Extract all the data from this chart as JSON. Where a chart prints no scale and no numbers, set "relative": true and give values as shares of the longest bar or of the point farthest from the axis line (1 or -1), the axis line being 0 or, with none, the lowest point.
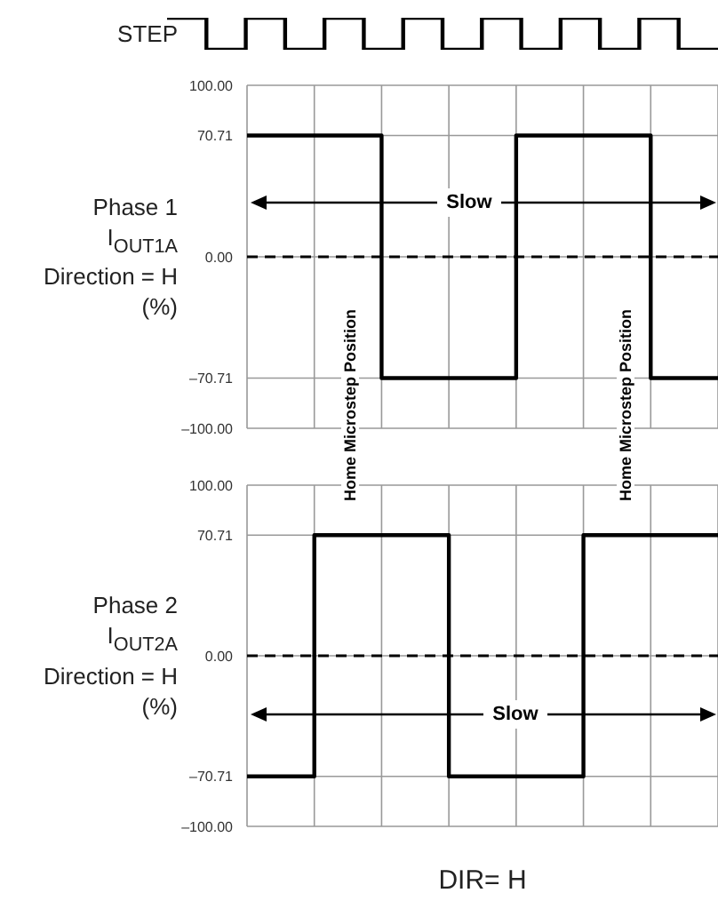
{
  "chart_data": [
    {
      "type": "step",
      "ylabel": "STEP",
      "relative": true,
      "categories": [
        null,
        null,
        null,
        null,
        null,
        null,
        null,
        null,
        null,
        null,
        null,
        null,
        null,
        null,
        null
      ],
      "series": [
        {
          "color": "#000000",
          "values": [
            1,
            0,
            1,
            0,
            1,
            0,
            1,
            0,
            1,
            0,
            1,
            0,
            1,
            0,
            0
          ]
        }
      ],
      "grid": false,
      "tick_labels": false,
      "legend": false
    },
    {
      "type": "step",
      "ylabel": "Phase 1\nI$_{OUT1A}$\nDirection = H\n(%)",
      "categories": [
        null,
        null,
        null,
        null,
        null,
        null,
        null,
        null
      ],
      "series": [
        {
          "color": "#000000",
          "values": [
            70.71,
            70.71,
            -70.71,
            -70.71,
            70.71,
            70.71,
            -70.71,
            -70.71
          ]
        }
      ],
      "ylim": [
        -100,
        100
      ],
      "yticks": [
        {
          "value": -100,
          "label": "–100.00"
        },
        {
          "value": -70.71,
          "label": "–70.71"
        },
        {
          "value": 0,
          "label": "0.00"
        },
        {
          "value": 70.71,
          "label": "70.71"
        },
        {
          "value": 100,
          "label": "100.00"
        }
      ],
      "grid": true,
      "tick_labels": "y",
      "legend": false,
      "ref_lines": [
        {
          "axis": "y",
          "value": 0,
          "line_style": "dashed",
          "color": "#000000"
        }
      ],
      "annotations": [
        {
          "text": "Slow",
          "y": 32
        },
        "Home Microstep Position",
        "Home Microstep Position"
      ]
    },
    {
      "type": "step",
      "ylabel": "Phase 2\nI$_{OUT2A}$\nDirection = H\n(%)",
      "xlabel": "DIR= H",
      "categories": [
        null,
        null,
        null,
        null,
        null,
        null,
        null,
        null
      ],
      "series": [
        {
          "color": "#000000",
          "values": [
            -70.71,
            70.71,
            70.71,
            -70.71,
            -70.71,
            70.71,
            70.71,
            70.71
          ]
        }
      ],
      "ylim": [
        -100,
        100
      ],
      "yticks": [
        {
          "value": -100,
          "label": "–100.00"
        },
        {
          "value": -70.71,
          "label": "–70.71"
        },
        {
          "value": 0,
          "label": "0.00"
        },
        {
          "value": 70.71,
          "label": "70.71"
        },
        {
          "value": 100,
          "label": "100.00"
        }
      ],
      "grid": true,
      "tick_labels": "y",
      "legend": false,
      "ref_lines": [
        {
          "axis": "y",
          "value": 0,
          "line_style": "dashed",
          "color": "#000000"
        }
      ],
      "annotations": [
        {
          "text": "Slow",
          "y": -34
        }
      ]
    }
  ]
}
